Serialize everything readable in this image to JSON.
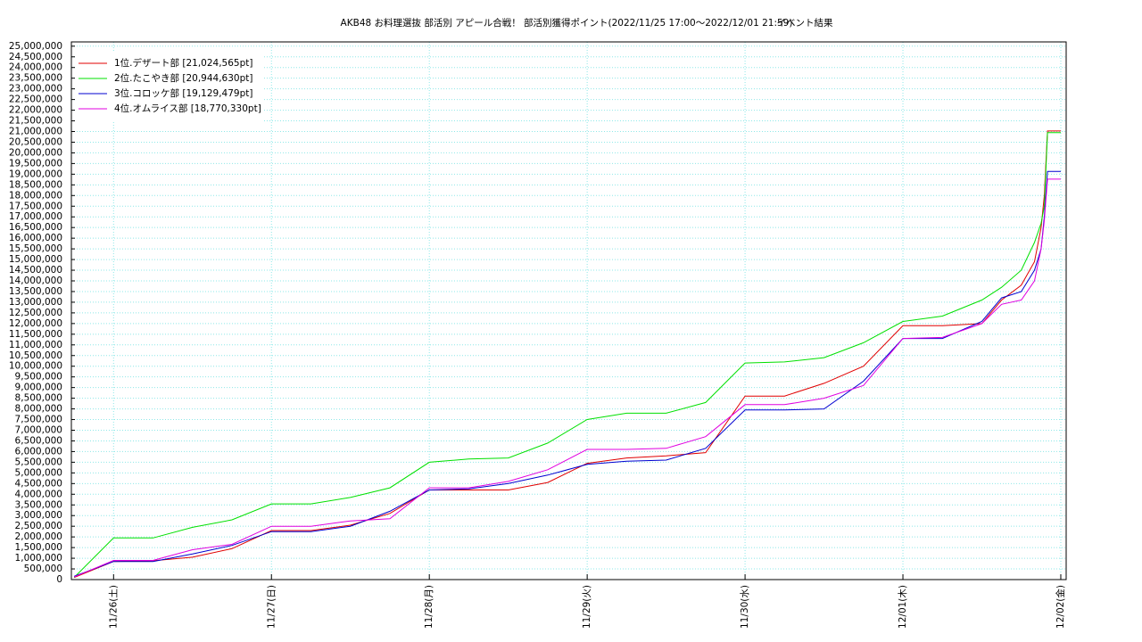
{
  "chart_data": {
    "type": "line",
    "title": "AKB48 お料理選抜 部活別 アピール合戦！ 部活別獲得ポイント(2022/11/25 17:00～2022/12/01 21:59)",
    "subtitle": "イベント結果",
    "x": [
      "2022-11-25T18:00",
      "2022-11-26T00:00",
      "2022-11-26T06:00",
      "2022-11-26T12:00",
      "2022-11-26T18:00",
      "2022-11-27T00:00",
      "2022-11-27T06:00",
      "2022-11-27T12:00",
      "2022-11-27T18:00",
      "2022-11-28T00:00",
      "2022-11-28T06:00",
      "2022-11-28T12:00",
      "2022-11-28T18:00",
      "2022-11-29T00:00",
      "2022-11-29T06:00",
      "2022-11-29T12:00",
      "2022-11-29T18:00",
      "2022-11-30T00:00",
      "2022-11-30T06:00",
      "2022-11-30T12:00",
      "2022-11-30T18:00",
      "2022-12-01T00:00",
      "2022-12-01T06:00",
      "2022-12-01T12:00",
      "2022-12-01T15:00",
      "2022-12-01T18:00",
      "2022-12-01T20:00",
      "2022-12-01T21:00",
      "2022-12-01T21:30",
      "2022-12-01T21:59",
      "2022-12-02T00:00"
    ],
    "series": [
      {
        "name": "1位.デザート部 [21,024,565pt]",
        "color": "#e00000",
        "values": [
          100000,
          850000,
          880000,
          1050000,
          1450000,
          2300000,
          2300000,
          2550000,
          3100000,
          4200000,
          4200000,
          4200000,
          4550000,
          5450000,
          5700000,
          5800000,
          5950000,
          8600000,
          8600000,
          9200000,
          10000000,
          11900000,
          11900000,
          12000000,
          13100000,
          13800000,
          14900000,
          16500000,
          18000000,
          21024565,
          21024565
        ]
      },
      {
        "name": "2位.たこやき部 [20,944,630pt]",
        "color": "#00e000",
        "values": [
          100000,
          1950000,
          1950000,
          2450000,
          2800000,
          3550000,
          3550000,
          3850000,
          4300000,
          5500000,
          5650000,
          5700000,
          6400000,
          7500000,
          7800000,
          7800000,
          8300000,
          10150000,
          10200000,
          10400000,
          11100000,
          12100000,
          12350000,
          13100000,
          13700000,
          14500000,
          15800000,
          16700000,
          17500000,
          20944630,
          20944630
        ]
      },
      {
        "name": "3位.コロッケ部 [19,129,479pt]",
        "color": "#0000d0",
        "values": [
          150000,
          850000,
          850000,
          1200000,
          1600000,
          2250000,
          2250000,
          2500000,
          3200000,
          4200000,
          4250000,
          4500000,
          4900000,
          5400000,
          5550000,
          5600000,
          6150000,
          7950000,
          7950000,
          8000000,
          9300000,
          11300000,
          11300000,
          12100000,
          13200000,
          13500000,
          14500000,
          15500000,
          17000000,
          19129479,
          19129479
        ]
      },
      {
        "name": "4位.オムライス部 [18,770,330pt]",
        "color": "#e000e0",
        "values": [
          120000,
          900000,
          900000,
          1400000,
          1650000,
          2500000,
          2500000,
          2750000,
          2850000,
          4300000,
          4300000,
          4600000,
          5150000,
          6100000,
          6100000,
          6150000,
          6700000,
          8200000,
          8200000,
          8500000,
          9100000,
          11300000,
          11350000,
          12000000,
          12900000,
          13100000,
          14000000,
          15500000,
          16800000,
          18770330,
          18770330
        ]
      }
    ],
    "xlim": [
      "2022-11-25T17:35",
      "2022-12-02T00:49"
    ],
    "xticks": [
      {
        "value": "2022-11-26T00:00",
        "label": "11/26(土)"
      },
      {
        "value": "2022-11-27T00:00",
        "label": "11/27(日)"
      },
      {
        "value": "2022-11-28T00:00",
        "label": "11/28(月)"
      },
      {
        "value": "2022-11-29T00:00",
        "label": "11/29(火)"
      },
      {
        "value": "2022-11-30T00:00",
        "label": "11/30(水)"
      },
      {
        "value": "2022-12-01T00:00",
        "label": "12/01(木)"
      },
      {
        "value": "2022-12-02T00:00",
        "label": "12/02(金)"
      }
    ],
    "ylim": [
      0,
      25200000
    ],
    "yticks": [
      0,
      {
        "value": 500000,
        "label": "500,000"
      },
      {
        "value": 1000000,
        "label": "1,000,000"
      },
      {
        "value": 1500000,
        "label": "1,500,000"
      },
      {
        "value": 2000000,
        "label": "2,000,000"
      },
      {
        "value": 2500000,
        "label": "2,500,000"
      },
      {
        "value": 3000000,
        "label": "3,000,000"
      },
      {
        "value": 3500000,
        "label": "3,500,000"
      },
      {
        "value": 4000000,
        "label": "4,000,000"
      },
      {
        "value": 4500000,
        "label": "4,500,000"
      },
      {
        "value": 5000000,
        "label": "5,000,000"
      },
      {
        "value": 5500000,
        "label": "5,500,000"
      },
      {
        "value": 6000000,
        "label": "6,000,000"
      },
      {
        "value": 6500000,
        "label": "6,500,000"
      },
      {
        "value": 7000000,
        "label": "7,000,000"
      },
      {
        "value": 7500000,
        "label": "7,500,000"
      },
      {
        "value": 8000000,
        "label": "8,000,000"
      },
      {
        "value": 8500000,
        "label": "8,500,000"
      },
      {
        "value": 9000000,
        "label": "9,000,000"
      },
      {
        "value": 9500000,
        "label": "9,500,000"
      },
      {
        "value": 10000000,
        "label": "10,000,000"
      },
      {
        "value": 10500000,
        "label": "10,500,000"
      },
      {
        "value": 11000000,
        "label": "11,000,000"
      },
      {
        "value": 11500000,
        "label": "11,500,000"
      },
      {
        "value": 12000000,
        "label": "12,000,000"
      },
      {
        "value": 12500000,
        "label": "12,500,000"
      },
      {
        "value": 13000000,
        "label": "13,000,000"
      },
      {
        "value": 13500000,
        "label": "13,500,000"
      },
      {
        "value": 14000000,
        "label": "14,000,000"
      },
      {
        "value": 14500000,
        "label": "14,500,000"
      },
      {
        "value": 15000000,
        "label": "15,000,000"
      },
      {
        "value": 15500000,
        "label": "15,500,000"
      },
      {
        "value": 16000000,
        "label": "16,000,000"
      },
      {
        "value": 16500000,
        "label": "16,500,000"
      },
      {
        "value": 17000000,
        "label": "17,000,000"
      },
      {
        "value": 17500000,
        "label": "17,500,000"
      },
      {
        "value": 18000000,
        "label": "18,000,000"
      },
      {
        "value": 18500000,
        "label": "18,500,000"
      },
      {
        "value": 19000000,
        "label": "19,000,000"
      },
      {
        "value": 19500000,
        "label": "19,500,000"
      },
      {
        "value": 20000000,
        "label": "20,000,000"
      },
      {
        "value": 20500000,
        "label": "20,500,000"
      },
      {
        "value": 21000000,
        "label": "21,000,000"
      },
      {
        "value": 21500000,
        "label": "21,500,000"
      },
      {
        "value": 22000000,
        "label": "22,000,000"
      },
      {
        "value": 22500000,
        "label": "22,500,000"
      },
      {
        "value": 23000000,
        "label": "23,000,000"
      },
      {
        "value": 23500000,
        "label": "23,500,000"
      },
      {
        "value": 24000000,
        "label": "24,000,000"
      },
      {
        "value": 24500000,
        "label": "24,500,000"
      },
      {
        "value": 25000000,
        "label": "25,000,000"
      }
    ],
    "grid": true,
    "legend": "upper left"
  }
}
